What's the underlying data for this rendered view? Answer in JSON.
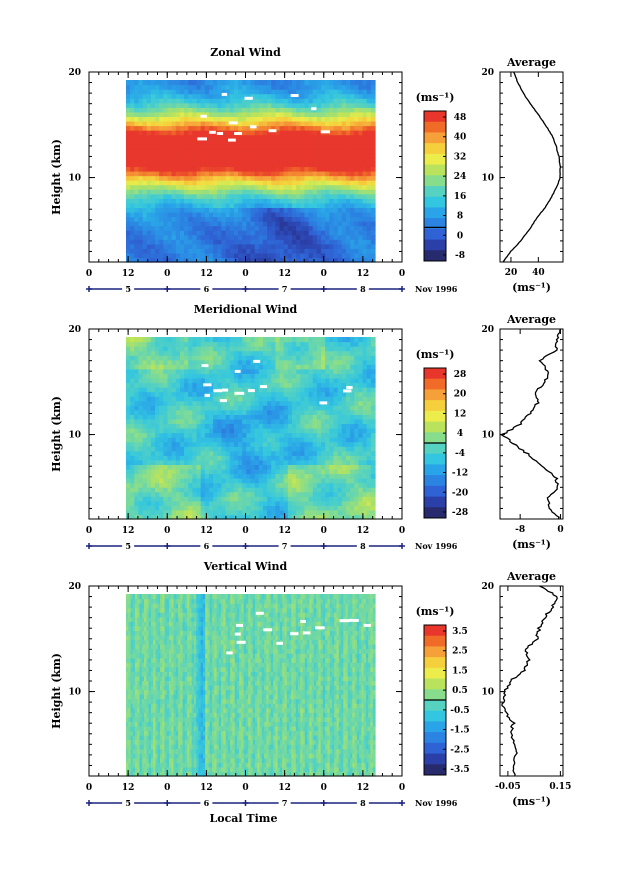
{
  "panels": [
    {
      "title": "Zonal Wind",
      "ylabel": "Height (km)",
      "yticks": [
        "20",
        "10"
      ],
      "unit": "(ms⁻¹)",
      "colorbar_labels": [
        "48",
        "40",
        "32",
        "24",
        "16",
        "8",
        "0",
        "-8"
      ],
      "avg_title": "Average",
      "avg_xticks": [
        "20",
        "40"
      ],
      "avg_unit": "(ms⁻¹)",
      "avg_yticks": [
        "20",
        "10"
      ]
    },
    {
      "title": "Meridional Wind",
      "ylabel": "Height (km)",
      "yticks": [
        "20",
        "10"
      ],
      "unit": "(ms⁻¹)",
      "colorbar_labels": [
        "28",
        "20",
        "12",
        "4",
        "-4",
        "-12",
        "-20",
        "-28"
      ],
      "avg_title": "Average",
      "avg_xticks": [
        "-8",
        "0"
      ],
      "avg_unit": "(ms⁻¹)",
      "avg_yticks": [
        "20",
        "10"
      ]
    },
    {
      "title": "Vertical Wind",
      "ylabel": "Height (km)",
      "yticks": [
        "20",
        "10"
      ],
      "unit": "(ms⁻¹)",
      "colorbar_labels": [
        "3.5",
        "2.5",
        "1.5",
        "0.5",
        "-0.5",
        "-1.5",
        "-2.5",
        "-3.5"
      ],
      "avg_title": "Average",
      "avg_xticks": [
        "-0.05",
        "0.15"
      ],
      "avg_unit": "(ms⁻¹)",
      "avg_yticks": [
        "20",
        "10"
      ]
    }
  ],
  "time_axis": {
    "hour_ticks": [
      "0",
      "12",
      "0",
      "12",
      "0",
      "12",
      "0",
      "12",
      "0"
    ],
    "day_labels": [
      "5",
      "6",
      "7",
      "8"
    ],
    "date_label": "Nov 1996",
    "xlabel": "Local Time"
  },
  "colors": {
    "colorbar": [
      "#e8362d",
      "#f06a28",
      "#f6a03a",
      "#f5cf3c",
      "#ecec4a",
      "#b9e35c",
      "#88dd8c",
      "#56d2c0",
      "#33c6e0",
      "#2aa4e8",
      "#2b84e2",
      "#2f62d4",
      "#2b3fa8",
      "#282a6e"
    ]
  },
  "chart_data": [
    {
      "type": "heatmap",
      "title": "Zonal Wind",
      "ylabel": "Height (km)",
      "ylim": [
        2,
        20
      ],
      "x_range_hours": [
        0,
        96
      ],
      "data_coverage_hours": [
        12,
        88
      ],
      "colorbar_levels": [
        48,
        40,
        32,
        24,
        16,
        8,
        0,
        -8
      ],
      "unit": "ms^-1",
      "mean_profile": {
        "title": "Average",
        "xlim": [
          12,
          58
        ],
        "height_km": [
          2,
          3,
          4,
          5,
          6,
          7,
          8,
          9,
          10,
          11,
          12,
          13,
          14,
          15,
          16,
          17,
          18,
          19,
          20
        ],
        "speed_ms": [
          14,
          20,
          27,
          33,
          38,
          44,
          49,
          53,
          56,
          56,
          55,
          53,
          50,
          45,
          40,
          34,
          29,
          25,
          22
        ]
      }
    },
    {
      "type": "heatmap",
      "title": "Meridional Wind",
      "ylabel": "Height (km)",
      "ylim": [
        2,
        20
      ],
      "x_range_hours": [
        0,
        96
      ],
      "data_coverage_hours": [
        12,
        88
      ],
      "colorbar_levels": [
        28,
        20,
        12,
        4,
        -4,
        -12,
        -20,
        -28
      ],
      "unit": "ms^-1",
      "mean_profile": {
        "title": "Average",
        "xlim": [
          -12,
          0.5
        ],
        "height_km": [
          2,
          3,
          4,
          5,
          6,
          7,
          8,
          9,
          10,
          11,
          12,
          13,
          14,
          15,
          16,
          17,
          18,
          19,
          20
        ],
        "speed_ms": [
          -0.3,
          -2.0,
          -2.5,
          -0.5,
          -1.0,
          -3.5,
          -6.0,
          -9.0,
          -11.5,
          -8.0,
          -6.0,
          -4.5,
          -5.0,
          -3.0,
          -2.5,
          -4.0,
          -1.0,
          -0.5,
          0.0
        ]
      }
    },
    {
      "type": "heatmap",
      "title": "Vertical Wind",
      "ylabel": "Height (km)",
      "ylim": [
        2,
        20
      ],
      "x_range_hours": [
        0,
        96
      ],
      "data_coverage_hours": [
        12,
        88
      ],
      "colorbar_levels": [
        3.5,
        2.5,
        1.5,
        0.5,
        -0.5,
        -1.5,
        -2.5,
        -3.5
      ],
      "unit": "ms^-1",
      "mean_profile": {
        "title": "Average",
        "xlim": [
          -0.08,
          0.16
        ],
        "height_km": [
          2,
          3,
          4,
          5,
          6,
          7,
          8,
          9,
          10,
          11,
          12,
          13,
          14,
          15,
          16,
          17,
          18,
          19,
          20
        ],
        "speed_ms": [
          -0.02,
          -0.03,
          -0.02,
          -0.02,
          -0.04,
          -0.03,
          -0.06,
          -0.07,
          -0.06,
          -0.04,
          0.01,
          0.03,
          0.02,
          0.06,
          0.07,
          0.09,
          0.12,
          0.14,
          0.07
        ]
      }
    }
  ]
}
